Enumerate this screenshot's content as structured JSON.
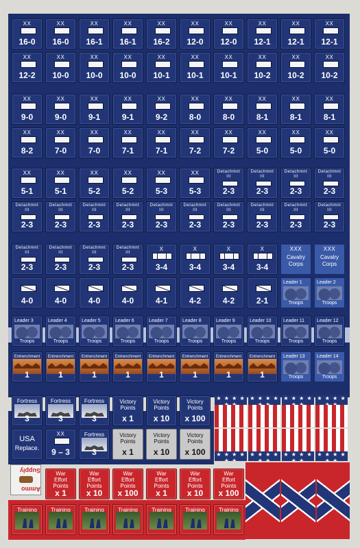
{
  "title": "",
  "divisions": {
    "row1": [
      "16-0",
      "16-0",
      "16-1",
      "16-1",
      "16-2",
      "12-0",
      "12-0",
      "12-1",
      "12-1",
      "12-1"
    ],
    "row2": [
      "12-2",
      "10-0",
      "10-0",
      "10-0",
      "10-1",
      "10-1",
      "10-1",
      "10-2",
      "10-2",
      "10-2"
    ],
    "row3": [
      "9-0",
      "9-0",
      "9-1",
      "9-1",
      "9-2",
      "8-0",
      "8-0",
      "8-1",
      "8-1",
      "8-1"
    ],
    "row4": [
      "8-2",
      "7-0",
      "7-0",
      "7-1",
      "7-1",
      "7-2",
      "7-2",
      "5-0",
      "5-0",
      "5-0"
    ],
    "row5": [
      "5-1",
      "5-1",
      "5-2",
      "5-2",
      "5-3",
      "5-3",
      "2-3",
      "2-3",
      "2-3",
      "2-3"
    ],
    "row6": [
      "2-3",
      "2-3",
      "2-3",
      "2-3",
      "2-3",
      "2-3",
      "2-3",
      "2-3",
      "2-3",
      "2-3"
    ],
    "row7": [
      "2-3",
      "2-3",
      "2-3",
      "2-3",
      "3-4",
      "3-4",
      "3-4",
      "3-4"
    ],
    "row8": [
      "4-0",
      "4-0",
      "4-0",
      "4-0",
      "4-1",
      "4-2",
      "4-2",
      "2-1"
    ],
    "size_xx": "XX",
    "size_x": "X",
    "size_xxx": "XXX",
    "size_iii": "III",
    "detachment": "Detachmnt"
  },
  "cavalry": {
    "line1": "Cavalry",
    "line2": "Corps"
  },
  "leaders": {
    "label": "Leader",
    "troops": "Troops",
    "row7_nums": [
      "1",
      "2"
    ],
    "row8_nums": [
      "3",
      "4",
      "5",
      "6",
      "7",
      "8",
      "9",
      "10",
      "11",
      "12"
    ],
    "row9_nums": [
      "13",
      "14"
    ]
  },
  "entrenchment": {
    "label": "Entrenchment",
    "value": "1"
  },
  "fortress": {
    "label": "Fortress",
    "value": "3"
  },
  "usa_replace": {
    "line1": "USA",
    "line2": "Replace."
  },
  "small_div": {
    "size": "XX",
    "value": "9 – 3"
  },
  "victory_points": {
    "line1": "Victory",
    "line2": "Points",
    "values": [
      "x 1",
      "x 10",
      "x 100"
    ]
  },
  "supply": {
    "top": "Supply",
    "bottom": "Ammo"
  },
  "war_effort": {
    "line1": "War",
    "line2": "Effort",
    "line3": "Points",
    "values": [
      "x 1",
      "x 10",
      "x 100",
      "x 1",
      "x 10",
      "x 100"
    ]
  },
  "training": {
    "label": "Training"
  },
  "flag_stars": "★ ★ ★ ★ ★ ★"
}
